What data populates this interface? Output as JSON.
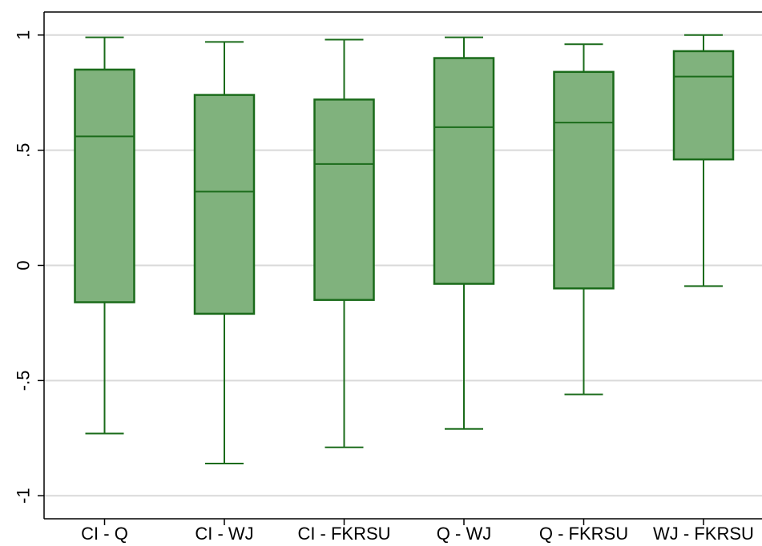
{
  "chart_data": {
    "type": "box",
    "title": "",
    "xlabel": "",
    "ylabel": "",
    "ylim": [
      -1.1,
      1.1
    ],
    "yticks": [
      {
        "value": 1,
        "label": "1"
      },
      {
        "value": 0.5,
        "label": ".5"
      },
      {
        "value": 0,
        "label": "0"
      },
      {
        "value": -0.5,
        "label": "-.5"
      },
      {
        "value": -1,
        "label": "-1"
      }
    ],
    "grid": true,
    "categories": [
      "CI - Q",
      "CI - WJ",
      "CI - FKRSU",
      "Q - WJ",
      "Q - FKRSU",
      "WJ - FKRSU"
    ],
    "boxes": [
      {
        "whisker_low": -0.73,
        "q1": -0.16,
        "median": 0.56,
        "q3": 0.85,
        "whisker_high": 0.99
      },
      {
        "whisker_low": -0.86,
        "q1": -0.21,
        "median": 0.32,
        "q3": 0.74,
        "whisker_high": 0.97
      },
      {
        "whisker_low": -0.79,
        "q1": -0.15,
        "median": 0.44,
        "q3": 0.72,
        "whisker_high": 0.98
      },
      {
        "whisker_low": -0.71,
        "q1": -0.08,
        "median": 0.6,
        "q3": 0.9,
        "whisker_high": 0.99
      },
      {
        "whisker_low": -0.56,
        "q1": -0.1,
        "median": 0.62,
        "q3": 0.84,
        "whisker_high": 0.96
      },
      {
        "whisker_low": -0.09,
        "q1": 0.46,
        "median": 0.82,
        "q3": 0.93,
        "whisker_high": 1.0
      }
    ],
    "colors": {
      "box_fill": "#80b27d",
      "box_stroke": "#1a6b1a",
      "grid": "#d9d9d9",
      "axis": "#000000"
    }
  }
}
